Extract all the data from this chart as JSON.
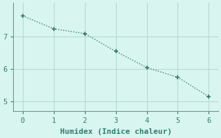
{
  "x": [
    0,
    1,
    2,
    3,
    4,
    5,
    6
  ],
  "y": [
    7.65,
    7.25,
    7.1,
    6.55,
    6.05,
    5.75,
    5.15
  ],
  "line_color": "#2e7d6e",
  "marker": "+",
  "marker_size": 5,
  "linewidth": 1.0,
  "linestyle": ":",
  "xlabel": "Humidex (Indice chaleur)",
  "background_color": "#d8f5f0",
  "grid_color": "#b0d8d0",
  "spine_color": "#5a9e90",
  "xlim": [
    -0.3,
    6.3
  ],
  "ylim": [
    4.7,
    8.05
  ],
  "yticks": [
    5,
    6,
    7
  ],
  "xticks": [
    0,
    1,
    2,
    3,
    4,
    5,
    6
  ],
  "xlabel_fontsize": 8,
  "tick_fontsize": 7.5,
  "tick_color": "#2e7d6e",
  "label_color": "#2e7d6e"
}
